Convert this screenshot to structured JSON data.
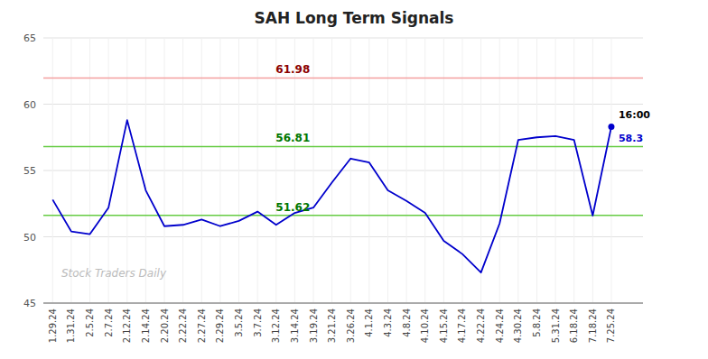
{
  "chart_data": {
    "type": "line",
    "title": "SAH Long Term Signals",
    "categories": [
      "1.29.24",
      "1.31.24",
      "2.5.24",
      "2.7.24",
      "2.12.24",
      "2.14.24",
      "2.20.24",
      "2.22.24",
      "2.27.24",
      "2.29.24",
      "3.5.24",
      "3.7.24",
      "3.12.24",
      "3.14.24",
      "3.19.24",
      "3.21.24",
      "3.26.24",
      "4.1.24",
      "4.3.24",
      "4.8.24",
      "4.10.24",
      "4.15.24",
      "4.17.24",
      "4.22.24",
      "4.24.24",
      "4.30.24",
      "5.8.24",
      "5.31.24",
      "6.18.24",
      "7.18.24",
      "7.25.24"
    ],
    "values": [
      52.8,
      50.4,
      50.2,
      52.2,
      58.8,
      53.5,
      50.8,
      50.9,
      51.3,
      50.8,
      51.2,
      51.9,
      50.9,
      51.8,
      52.2,
      54.1,
      55.9,
      55.6,
      53.5,
      52.7,
      51.8,
      49.7,
      48.7,
      47.3,
      51.0,
      57.3,
      57.5,
      57.6,
      57.3,
      51.6,
      58.3
    ],
    "color": "#0000cc",
    "ylim": [
      45,
      65
    ],
    "yticks": [
      45,
      50,
      55,
      60,
      65
    ],
    "grid": true,
    "reference_lines": [
      {
        "value": 61.98,
        "color": "#f4a0a0",
        "label_color": "#8b0000"
      },
      {
        "value": 56.81,
        "color": "#66cc44",
        "label_color": "#007700"
      },
      {
        "value": 51.62,
        "color": "#66cc44",
        "label_color": "#007700"
      }
    ],
    "annotations": [
      {
        "text": "16:00",
        "color": "#000000"
      },
      {
        "text": "58.3",
        "color": "#0000cc"
      }
    ],
    "watermark": "Stock Traders Daily"
  }
}
